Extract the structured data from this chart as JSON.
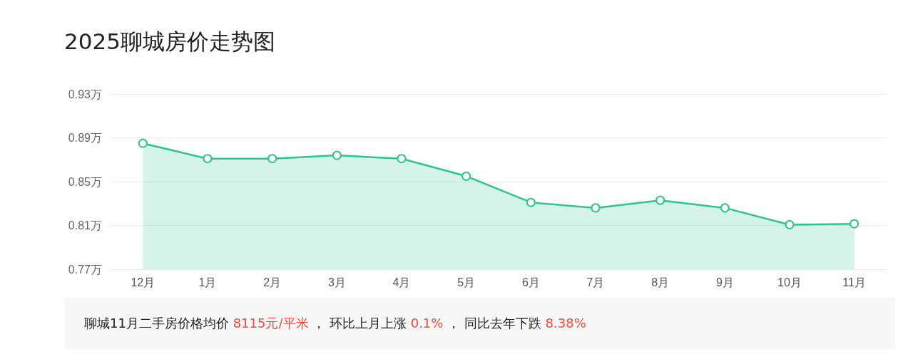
{
  "chart_data": {
    "type": "area",
    "title": "2025聊城房价走势图",
    "categories": [
      "12月",
      "1月",
      "2月",
      "3月",
      "4月",
      "5月",
      "6月",
      "7月",
      "8月",
      "9月",
      "10月",
      "11月"
    ],
    "series": [
      {
        "color": "#2ec48e",
        "values": [
          0.885,
          0.871,
          0.871,
          0.874,
          0.871,
          0.855,
          0.831,
          0.826,
          0.833,
          0.826,
          0.8107,
          0.8115
        ]
      }
    ],
    "ylim": [
      0.77,
      0.93
    ],
    "yticks": [
      {
        "value": 0.77,
        "label": "0.77万"
      },
      {
        "value": 0.81,
        "label": "0.81万"
      },
      {
        "value": 0.85,
        "label": "0.85万"
      },
      {
        "value": 0.89,
        "label": "0.89万"
      },
      {
        "value": 0.93,
        "label": "0.93万"
      }
    ],
    "grid": "y",
    "marker": "circle",
    "line_style": "solid",
    "annotations": [
      "聊城11月二手房价格均价 ",
      "8115元/平米",
      " ， 环比上月上涨 ",
      "0.1%",
      " ， 同比去年下跌 ",
      "8.38%"
    ]
  }
}
